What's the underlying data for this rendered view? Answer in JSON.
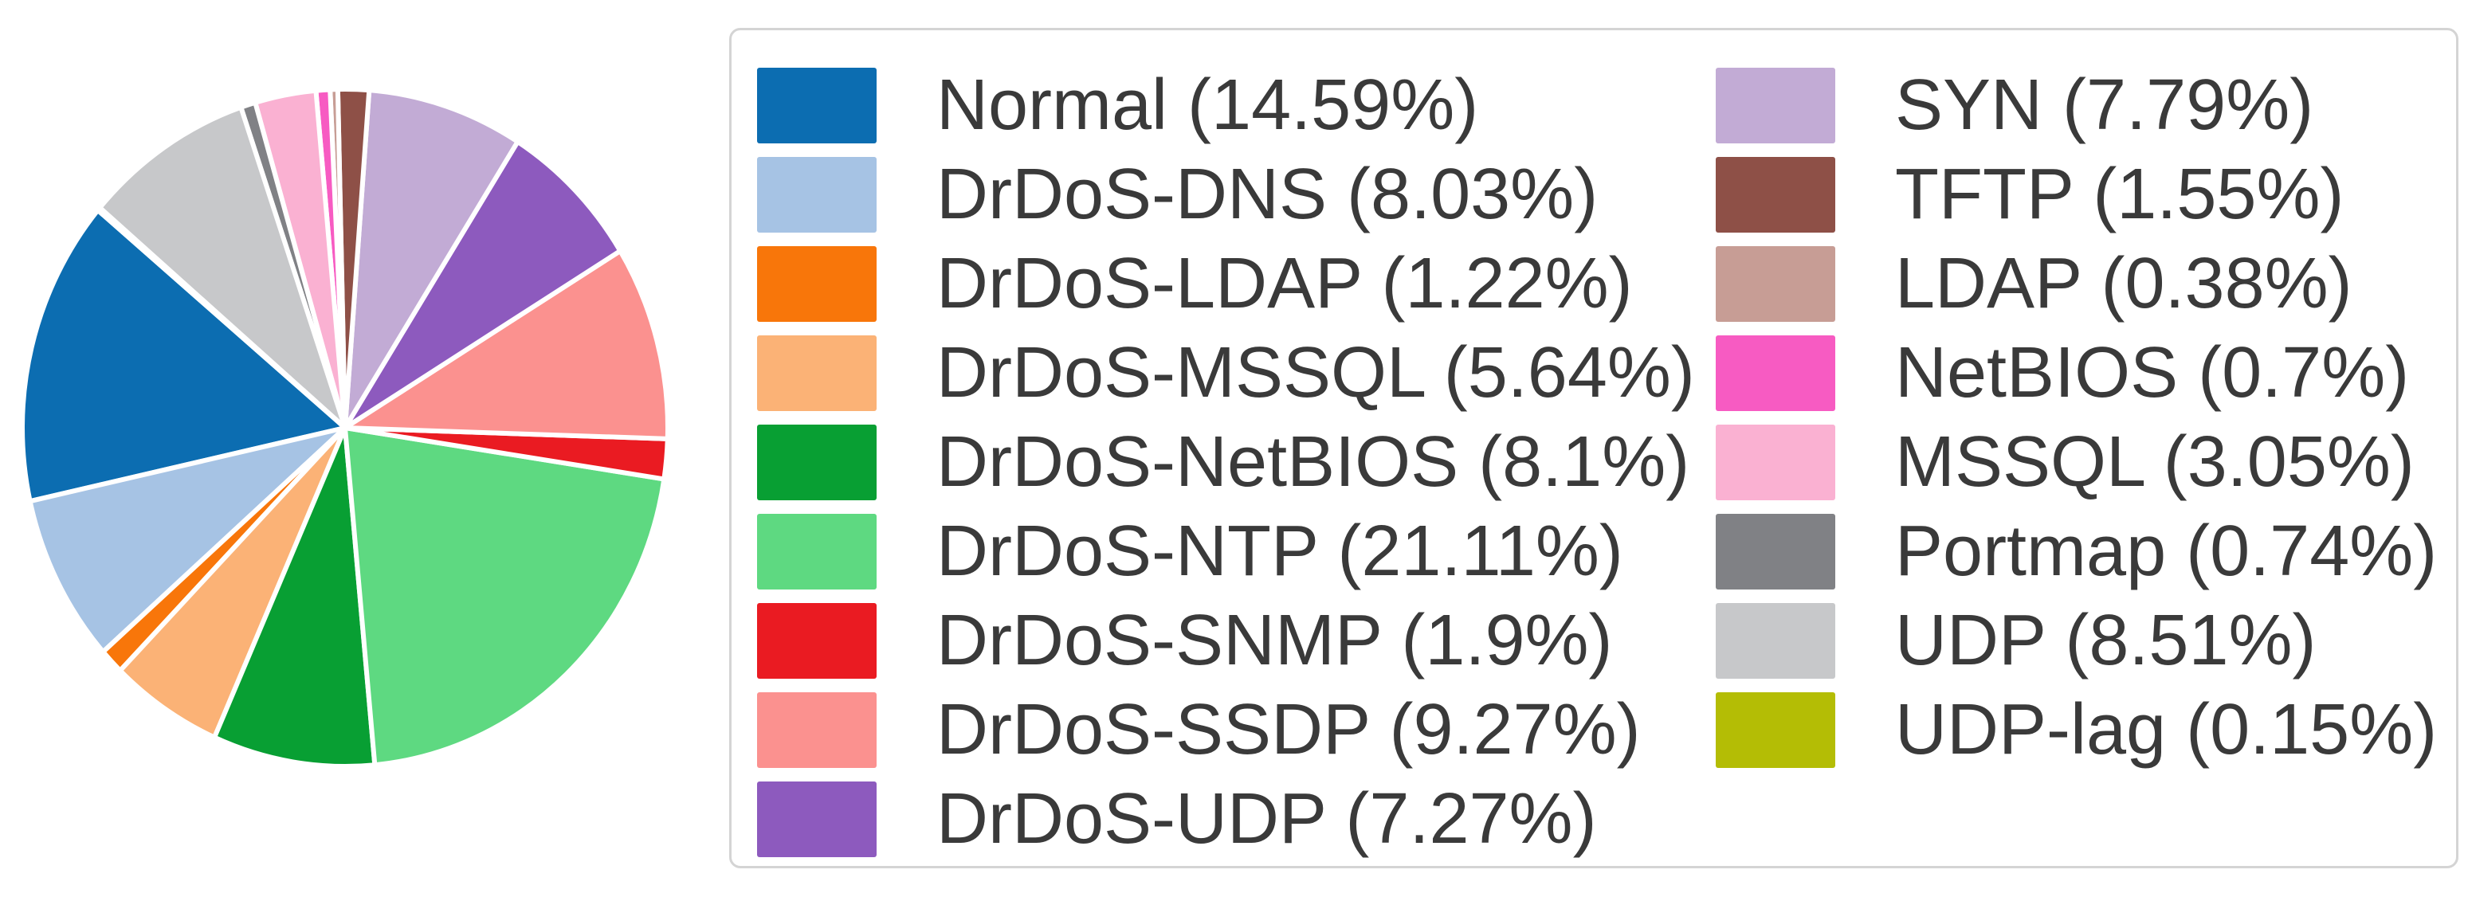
{
  "chart_data": {
    "type": "pie",
    "title": "",
    "legend_position": "right",
    "grid": false,
    "start_conic_angle_deg": 310,
    "direction": "counterclockwise",
    "wedge_edge_color": "#ffffff",
    "legend_border_color": "#d4d4d4",
    "text_color": "#3a3a3a",
    "legend_columns": [
      9,
      8
    ],
    "slices": [
      {
        "label": "Normal",
        "value": 14.59,
        "pct": "14.59",
        "display": "Normal (14.59%)",
        "color": "#0c6db1"
      },
      {
        "label": "DrDoS-DNS",
        "value": 8.03,
        "pct": "8.03",
        "display": "DrDoS-DNS (8.03%)",
        "color": "#a6c3e4"
      },
      {
        "label": "DrDoS-LDAP",
        "value": 1.22,
        "pct": "1.22",
        "display": "DrDoS-LDAP (1.22%)",
        "color": "#f8760a"
      },
      {
        "label": "DrDoS-MSSQL",
        "value": 5.64,
        "pct": "5.64",
        "display": "DrDoS-MSSQL (5.64%)",
        "color": "#fbb276"
      },
      {
        "label": "DrDoS-NetBIOS",
        "value": 8.1,
        "pct": "8.1",
        "display": "DrDoS-NetBIOS (8.1%)",
        "color": "#089f33"
      },
      {
        "label": "DrDoS-NTP",
        "value": 21.11,
        "pct": "21.11",
        "display": "DrDoS-NTP (21.11%)",
        "color": "#5ed981"
      },
      {
        "label": "DrDoS-SNMP",
        "value": 1.9,
        "pct": "1.9",
        "display": "DrDoS-SNMP (1.9%)",
        "color": "#ea1b22"
      },
      {
        "label": "DrDoS-SSDP",
        "value": 9.27,
        "pct": "9.27",
        "display": "DrDoS-SSDP (9.27%)",
        "color": "#fb918f"
      },
      {
        "label": "DrDoS-UDP",
        "value": 7.27,
        "pct": "7.27",
        "display": "DrDoS-UDP (7.27%)",
        "color": "#8d5abe"
      },
      {
        "label": "SYN",
        "value": 7.79,
        "pct": "7.79",
        "display": "SYN (7.79%)",
        "color": "#c2abd5"
      },
      {
        "label": "TFTP",
        "value": 1.55,
        "pct": "1.55",
        "display": "TFTP (1.55%)",
        "color": "#8e5047"
      },
      {
        "label": "LDAP",
        "value": 0.38,
        "pct": "0.38",
        "display": "LDAP (0.38%)",
        "color": "#c79d95"
      },
      {
        "label": "NetBIOS",
        "value": 0.7,
        "pct": "0.7",
        "display": "NetBIOS (0.7%)",
        "color": "#f75bc2"
      },
      {
        "label": "MSSQL",
        "value": 3.05,
        "pct": "3.05",
        "display": "MSSQL (3.05%)",
        "color": "#fab1d2"
      },
      {
        "label": "Portmap",
        "value": 0.74,
        "pct": "0.74",
        "display": "Portmap (0.74%)",
        "color": "#808185"
      },
      {
        "label": "UDP",
        "value": 8.51,
        "pct": "8.51",
        "display": "UDP (8.51%)",
        "color": "#c7c8ca"
      },
      {
        "label": "UDP-lag",
        "value": 0.15,
        "pct": "0.15",
        "display": "UDP-lag (0.15%)",
        "color": "#b4bd05"
      }
    ]
  }
}
